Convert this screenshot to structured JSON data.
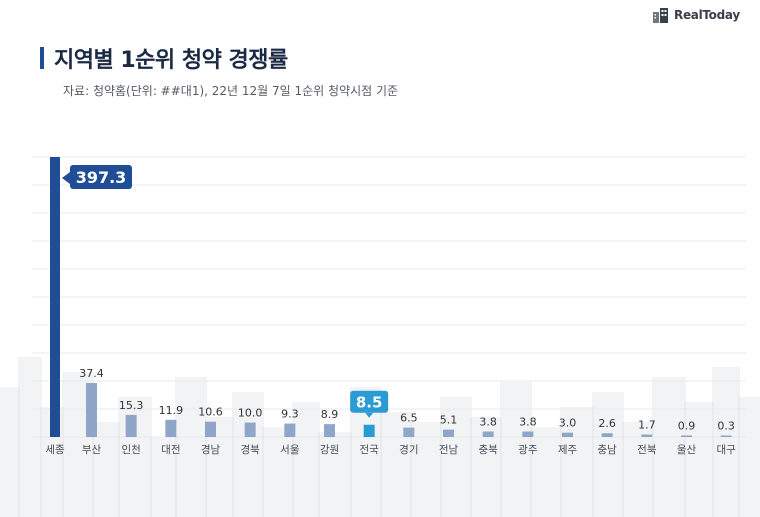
{
  "brand": {
    "name": "RealToday"
  },
  "header": {
    "title": "지역별 1순위 청약 경쟁률",
    "subtitle": "자료: 청약홈(단위: ##대1), 22년 12월 7일 1순위 청약시점 기준"
  },
  "colors": {
    "highlight_bar": "#1f4e96",
    "regular_bar": "#8fa6c8",
    "national_bar": "#2b9bd3",
    "gridline": "#e6e8ec",
    "text": "#333333"
  },
  "chart_data": {
    "type": "bar",
    "title": "지역별 1순위 청약 경쟁률",
    "xlabel": "",
    "ylabel": "",
    "grid": true,
    "categories": [
      "세종",
      "부산",
      "인천",
      "대전",
      "경남",
      "경북",
      "서울",
      "강원",
      "전국",
      "경기",
      "전남",
      "충북",
      "광주",
      "제주",
      "충남",
      "전북",
      "울산",
      "대구"
    ],
    "values": [
      397.3,
      37.4,
      15.3,
      11.9,
      10.6,
      10.0,
      9.3,
      8.9,
      8.5,
      6.5,
      5.1,
      3.8,
      3.8,
      3.0,
      2.6,
      1.7,
      0.9,
      0.3
    ],
    "value_labels": [
      "397.3",
      "37.4",
      "15.3",
      "11.9",
      "10.6",
      "10.0",
      "9.3",
      "8.9",
      "8.5",
      "6.5",
      "5.1",
      "3.8",
      "3.8",
      "3.0",
      "2.6",
      "1.7",
      "0.9",
      "0.3"
    ],
    "highlight": {
      "max": "세종",
      "national": "전국"
    },
    "ylim": [
      0,
      400
    ]
  }
}
